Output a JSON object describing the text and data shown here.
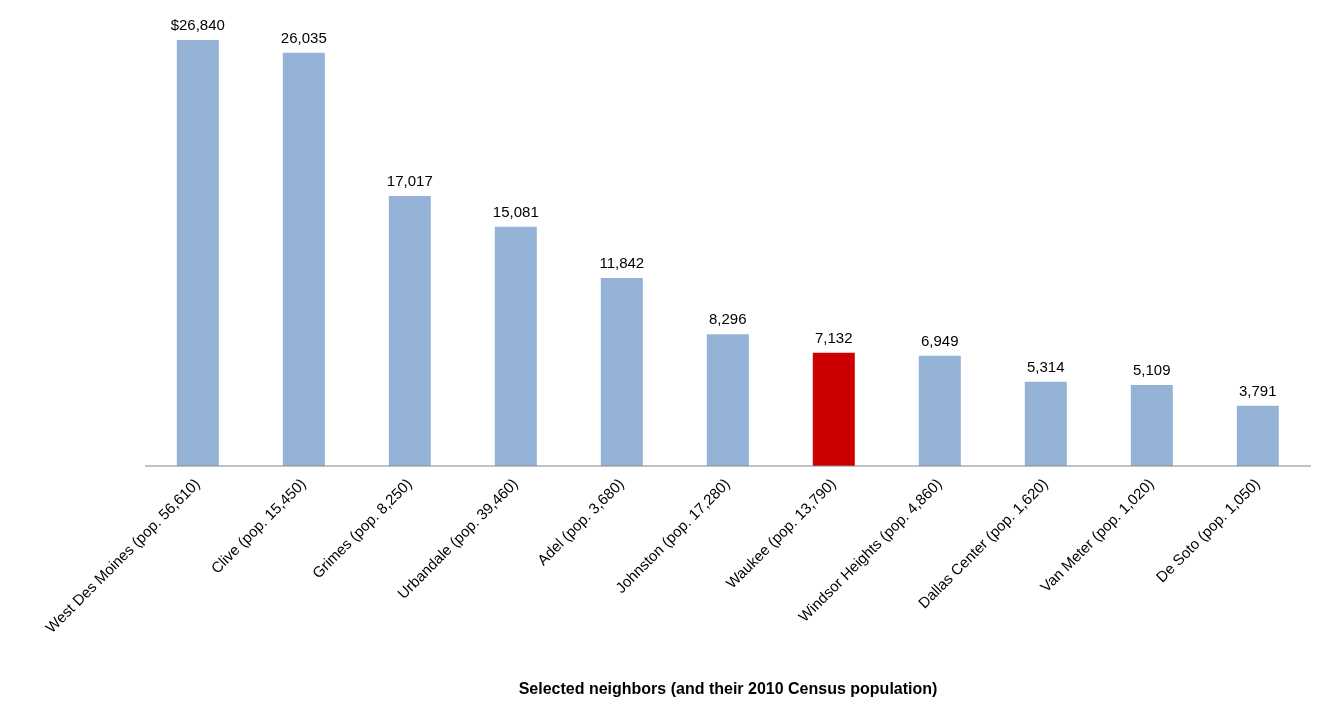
{
  "chart_data": {
    "type": "bar",
    "xlabel": "Selected neighbors (and their 2010 Census population)",
    "categories": [
      "West Des Moines  (pop. 56,610)",
      "Clive  (pop. 15,450)",
      "Grimes  (pop. 8,250)",
      "Urbandale  (pop. 39,460)",
      "Adel  (pop. 3,680)",
      "Johnston  (pop. 17,280)",
      "Waukee  (pop. 13,790)",
      "Windsor Heights  (pop. 4,860)",
      "Dallas Center  (pop. 1,620)",
      "Van Meter  (pop. 1,020)",
      "De Soto  (pop. 1,050)"
    ],
    "values": [
      26840,
      26035,
      17017,
      15081,
      11842,
      8296,
      7132,
      6949,
      5314,
      5109,
      3791
    ],
    "value_labels": [
      "$26,840",
      "26,035",
      "17,017",
      "15,081",
      "11,842",
      "8,296",
      "7,132",
      "6,949",
      "5,314",
      "5,109",
      "3,791"
    ],
    "colors": [
      "#95b3d7",
      "#95b3d7",
      "#95b3d7",
      "#95b3d7",
      "#95b3d7",
      "#95b3d7",
      "#cc0000",
      "#95b3d7",
      "#95b3d7",
      "#95b3d7",
      "#95b3d7"
    ],
    "legend": false
  }
}
